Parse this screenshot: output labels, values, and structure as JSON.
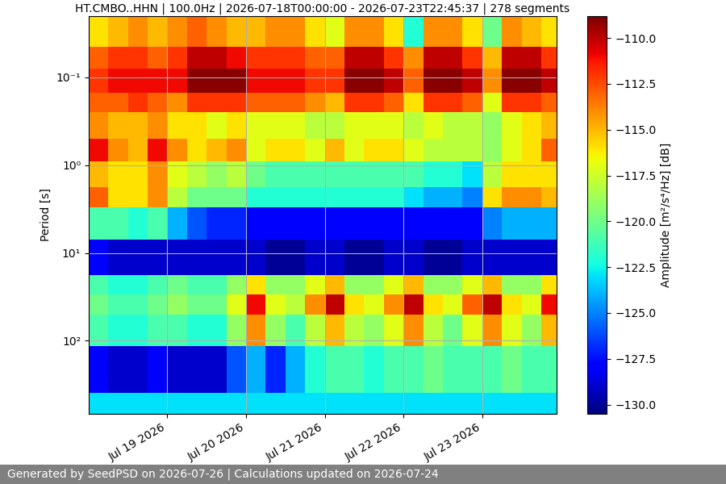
{
  "chart_data": {
    "type": "heatmap",
    "title": "HT.CMBO..HHN | 100.0Hz | 2026-07-18T00:00:00 - 2026-07-23T22:45:37 | 278 segments",
    "y_label": "Period [s]",
    "annotation": "Generated by SeedPSD on 2026-07-26 | Calculations updated on 2026-07-24",
    "log": "y",
    "grid": true,
    "xlim": [
      "2026-07-18T00:00:00",
      "2026-07-23T22:45:37"
    ],
    "xticks": [
      {
        "value": "2026-07-19T00:00:00",
        "label": "Jul 19 2026"
      },
      {
        "value": "2026-07-20T00:00:00",
        "label": "Jul 20 2026"
      },
      {
        "value": "2026-07-21T00:00:00",
        "label": "Jul 21 2026"
      },
      {
        "value": "2026-07-22T00:00:00",
        "label": "Jul 22 2026"
      },
      {
        "value": "2026-07-23T00:00:00",
        "label": "Jul 23 2026"
      }
    ],
    "ylim": [
      680,
      0.02
    ],
    "yticks": [
      {
        "value": 0.1,
        "label": "10⁻¹"
      },
      {
        "value": 1,
        "label": "10⁰"
      },
      {
        "value": 10,
        "label": "10¹"
      },
      {
        "value": 100,
        "label": "10²"
      }
    ],
    "x_edges": [
      "2026-07-18T00:00:00",
      "2026-07-18T06:00:00",
      "2026-07-18T12:00:00",
      "2026-07-18T18:00:00",
      "2026-07-19T00:00:00",
      "2026-07-19T06:00:00",
      "2026-07-19T12:00:00",
      "2026-07-19T18:00:00",
      "2026-07-20T00:00:00",
      "2026-07-20T06:00:00",
      "2026-07-20T12:00:00",
      "2026-07-20T18:00:00",
      "2026-07-21T00:00:00",
      "2026-07-21T06:00:00",
      "2026-07-21T12:00:00",
      "2026-07-21T18:00:00",
      "2026-07-22T00:00:00",
      "2026-07-22T06:00:00",
      "2026-07-22T12:00:00",
      "2026-07-22T18:00:00",
      "2026-07-23T00:00:00",
      "2026-07-23T06:00:00",
      "2026-07-23T12:00:00",
      "2026-07-23T18:00:00",
      "2026-07-23T22:45:37"
    ],
    "y_edges": [
      0.02,
      0.045,
      0.08,
      0.15,
      0.25,
      0.5,
      0.9,
      1.8,
      3,
      7,
      18,
      30,
      50,
      115,
      390,
      680
    ],
    "values": [
      [
        -116,
        -115,
        -114,
        -115,
        -114,
        -113,
        -114,
        -115,
        -115,
        -114,
        -114,
        -116,
        -117,
        -114,
        -114,
        -116,
        -122,
        -114,
        -114,
        -116,
        -120,
        -114,
        -115,
        -116
      ],
      [
        -113,
        -112,
        -112,
        -113,
        -112,
        -110,
        -110,
        -111,
        -112,
        -112,
        -112,
        -113,
        -113,
        -110,
        -110,
        -112,
        -114,
        -110,
        -110,
        -112,
        -115,
        -110,
        -110,
        -112
      ],
      [
        -112,
        -111,
        -111,
        -111,
        -111,
        -109,
        -109,
        -109,
        -111,
        -111,
        -111,
        -112,
        -112,
        -109,
        -109,
        -110,
        -113,
        -109,
        -109,
        -110,
        -114,
        -109,
        -109,
        -110
      ],
      [
        -113,
        -113,
        -112,
        -113,
        -114,
        -112,
        -112,
        -112,
        -113,
        -113,
        -113,
        -114,
        -115,
        -112,
        -112,
        -113,
        -116,
        -112,
        -112,
        -113,
        -117,
        -112,
        -112,
        -113
      ],
      [
        -114,
        -115,
        -115,
        -114,
        -116,
        -116,
        -117,
        -116,
        -117,
        -117,
        -117,
        -118,
        -118,
        -117,
        -117,
        -117,
        -118,
        -117,
        -118,
        -118,
        -119,
        -117,
        -116,
        -115
      ],
      [
        -111,
        -114,
        -115,
        -111,
        -114,
        -116,
        -115,
        -114,
        -117,
        -116,
        -116,
        -117,
        -115,
        -117,
        -116,
        -116,
        -117,
        -118,
        -118,
        -118,
        -119,
        -117,
        -116,
        -113
      ],
      [
        -115,
        -116,
        -116,
        -114,
        -117,
        -118,
        -119,
        -118,
        -120,
        -121,
        -121,
        -121,
        -121,
        -121,
        -121,
        -121,
        -121,
        -122,
        -122,
        -123,
        -118,
        -116,
        -116,
        -116
      ],
      [
        -113,
        -116,
        -116,
        -114,
        -118,
        -120,
        -120,
        -120,
        -122,
        -122,
        -122,
        -122,
        -122,
        -122,
        -122,
        -122,
        -123,
        -124,
        -124,
        -125,
        -116,
        -114,
        -114,
        -115
      ],
      [
        -121,
        -121,
        -122,
        -121,
        -124,
        -126,
        -127,
        -127,
        -128,
        -128,
        -128,
        -128,
        -128,
        -128,
        -128,
        -128,
        -128,
        -128,
        -128,
        -128,
        -125,
        -124,
        -124,
        -124
      ],
      [
        -128,
        -129,
        -129,
        -129,
        -129,
        -129,
        -129,
        -129,
        -129,
        -130,
        -130,
        -129,
        -129,
        -130,
        -130,
        -129,
        -129,
        -130,
        -130,
        -129,
        -129,
        -129,
        -129,
        -129
      ],
      [
        -121,
        -122,
        -122,
        -121,
        -120,
        -121,
        -121,
        -119,
        -116,
        -119,
        -119,
        -117,
        -115,
        -119,
        -119,
        -117,
        -115,
        -119,
        -119,
        -117,
        -115,
        -119,
        -119,
        -116
      ],
      [
        -120,
        -121,
        -121,
        -120,
        -119,
        -120,
        -120,
        -117,
        -111,
        -117,
        -118,
        -114,
        -110,
        -116,
        -117,
        -114,
        -110,
        -116,
        -117,
        -113,
        -110,
        -116,
        -117,
        -111
      ],
      [
        -121,
        -122,
        -122,
        -121,
        -121,
        -122,
        -122,
        -119,
        -114,
        -119,
        -121,
        -118,
        -115,
        -118,
        -119,
        -117,
        -114,
        -118,
        -120,
        -117,
        -114,
        -117,
        -119,
        -115
      ],
      [
        -128,
        -129,
        -129,
        -128,
        -129,
        -129,
        -129,
        -126,
        -124,
        -127,
        -124,
        -122,
        -121,
        -121,
        -122,
        -121,
        -121,
        -120,
        -121,
        -121,
        -121,
        -120,
        -121,
        -121
      ],
      [
        -123,
        -123,
        -123,
        -123,
        -123,
        -123,
        -123,
        -123,
        -123,
        -123,
        -123,
        -123,
        -123,
        -123,
        -123,
        -123,
        -123,
        -123,
        -123,
        -123,
        -123,
        -123,
        -123,
        -123
      ]
    ],
    "colorbar": {
      "label": "Amplitude [m²/s⁴/Hz] [dB]",
      "lim": [
        -130.5,
        -108.8
      ],
      "ticks": [
        {
          "value": -130.0,
          "label": "−130.0"
        },
        {
          "value": -127.5,
          "label": "−127.5"
        },
        {
          "value": -125.0,
          "label": "−125.0"
        },
        {
          "value": -122.5,
          "label": "−122.5"
        },
        {
          "value": -120.0,
          "label": "−120.0"
        },
        {
          "value": -117.5,
          "label": "−117.5"
        },
        {
          "value": -115.0,
          "label": "−115.0"
        },
        {
          "value": -112.5,
          "label": "−112.5"
        },
        {
          "value": -110.0,
          "label": "−110.0"
        }
      ]
    }
  }
}
